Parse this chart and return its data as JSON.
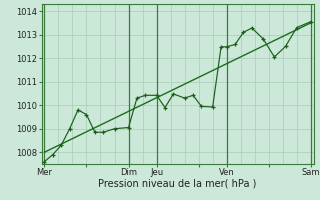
{
  "title": "",
  "xlabel": "Pression niveau de la mer( hPa )",
  "bg_color": "#cce8d8",
  "grid_color": "#a8ccb8",
  "line_color": "#1a6e1a",
  "dark_line_color": "#1a5e1a",
  "ylim": [
    1007.5,
    1014.3
  ],
  "xlim": [
    -0.1,
    9.6
  ],
  "xtick_labels": [
    "Mer",
    "",
    "Dim",
    "Jeu",
    "",
    "Ven",
    "",
    "Sam"
  ],
  "xtick_positions": [
    0,
    1.5,
    3,
    4,
    5.5,
    6.5,
    8,
    9.5
  ],
  "vline_positions": [
    0,
    3,
    4,
    6.5,
    9.5
  ],
  "smooth_line_x": [
    0,
    9.5
  ],
  "smooth_line_y": [
    1008.0,
    1013.5
  ],
  "detail_line_x": [
    0,
    0.3,
    0.6,
    0.9,
    1.2,
    1.5,
    1.8,
    2.1,
    2.5,
    3.0,
    3.3,
    3.6,
    4.0,
    4.3,
    4.6,
    5.0,
    5.3,
    5.6,
    6.0,
    6.3,
    6.5,
    6.8,
    7.1,
    7.4,
    7.8,
    8.2,
    8.6,
    9.0,
    9.5
  ],
  "detail_line_y": [
    1007.6,
    1007.9,
    1008.3,
    1009.0,
    1009.8,
    1009.6,
    1008.85,
    1008.85,
    1009.0,
    1009.05,
    1010.3,
    1010.42,
    1010.42,
    1009.9,
    1010.48,
    1010.3,
    1010.42,
    1009.95,
    1009.92,
    1012.48,
    1012.48,
    1012.58,
    1013.1,
    1013.28,
    1012.82,
    1012.05,
    1012.5,
    1013.3,
    1013.55
  ],
  "ytick_positions": [
    1008,
    1009,
    1010,
    1011,
    1012,
    1013,
    1014
  ],
  "ytick_labels": [
    "1008",
    "1009",
    "1010",
    "1011",
    "1012",
    "1013",
    "1014"
  ],
  "xlabel_fontsize": 7,
  "tick_fontsize": 6
}
